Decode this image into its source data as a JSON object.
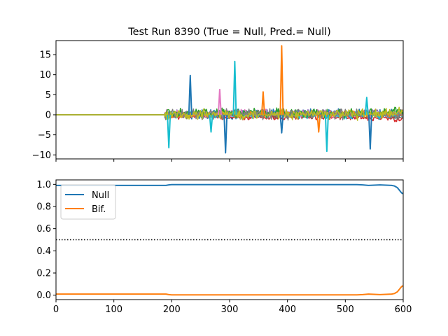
{
  "chart_data": [
    {
      "type": "line",
      "title": "Test Run 8390 (True = Null, Pred.= Null)",
      "xlabel": "",
      "ylabel": "",
      "xlim": [
        0,
        600
      ],
      "ylim": [
        -11,
        18.5
      ],
      "yticks": [
        -10,
        -5,
        0,
        5,
        10,
        15
      ],
      "xticks_labeled": false,
      "grid": false,
      "description_of_series": "Many overlapping noisy multivariate traces; flat at 0 until x≈190, then fluctuating between about -2 and 3 with spikes.",
      "series_colors": [
        "#1f77b4",
        "#ff7f0e",
        "#2ca02c",
        "#d62728",
        "#9467bd",
        "#8c564b",
        "#e377c2",
        "#7f7f7f",
        "#bcbd22",
        "#17becf"
      ],
      "spikes": [
        {
          "x": 195,
          "y": -8.2,
          "color": "#17becf"
        },
        {
          "x": 232,
          "y": 9.8,
          "color": "#1f77b4"
        },
        {
          "x": 268,
          "y": -4.3,
          "color": "#17becf"
        },
        {
          "x": 283,
          "y": 6.3,
          "color": "#e377c2"
        },
        {
          "x": 293,
          "y": -9.5,
          "color": "#1f77b4"
        },
        {
          "x": 309,
          "y": 13.3,
          "color": "#17becf"
        },
        {
          "x": 358,
          "y": 5.7,
          "color": "#ff7f0e"
        },
        {
          "x": 390,
          "y": 17.2,
          "color": "#ff7f0e"
        },
        {
          "x": 390,
          "y": -4.5,
          "color": "#1f77b4"
        },
        {
          "x": 454,
          "y": -4.3,
          "color": "#ff7f0e"
        },
        {
          "x": 468,
          "y": -9.1,
          "color": "#17becf"
        },
        {
          "x": 537,
          "y": 4.3,
          "color": "#17becf"
        },
        {
          "x": 543,
          "y": -8.5,
          "color": "#1f77b4"
        }
      ]
    },
    {
      "type": "line",
      "title": "",
      "xlabel": "",
      "ylabel": "",
      "xlim": [
        0,
        600
      ],
      "ylim": [
        -0.04,
        1.04
      ],
      "xticks": [
        0,
        100,
        200,
        300,
        400,
        500,
        600
      ],
      "yticks": [
        0.0,
        0.2,
        0.4,
        0.6,
        0.8,
        1.0
      ],
      "ytick_labels": [
        "0.0",
        "0.2",
        "0.4",
        "0.6",
        "0.8",
        "1.0"
      ],
      "grid": false,
      "legend_position": "top-left",
      "threshold": {
        "y": 0.5,
        "style": "dotted",
        "color": "#000000"
      },
      "series": [
        {
          "name": "Null",
          "color": "#1f77b4",
          "x": [
            0,
            50,
            100,
            150,
            185,
            190,
            195,
            200,
            250,
            300,
            350,
            400,
            450,
            500,
            520,
            530,
            540,
            560,
            580,
            585,
            590,
            593,
            596,
            598,
            600
          ],
          "y": [
            0.99,
            0.99,
            0.99,
            0.99,
            0.99,
            0.99,
            0.995,
            0.997,
            0.997,
            0.997,
            0.997,
            0.997,
            0.997,
            0.997,
            0.997,
            0.995,
            0.99,
            0.995,
            0.99,
            0.985,
            0.97,
            0.95,
            0.93,
            0.92,
            0.915
          ]
        },
        {
          "name": "Bif.",
          "color": "#ff7f0e",
          "x": [
            0,
            50,
            100,
            150,
            185,
            190,
            195,
            200,
            250,
            300,
            350,
            400,
            450,
            500,
            520,
            530,
            540,
            560,
            580,
            585,
            590,
            593,
            596,
            598,
            600
          ],
          "y": [
            0.01,
            0.01,
            0.01,
            0.01,
            0.01,
            0.01,
            0.005,
            0.003,
            0.003,
            0.003,
            0.003,
            0.003,
            0.003,
            0.003,
            0.003,
            0.005,
            0.01,
            0.005,
            0.01,
            0.015,
            0.03,
            0.05,
            0.07,
            0.08,
            0.085
          ]
        }
      ]
    }
  ]
}
